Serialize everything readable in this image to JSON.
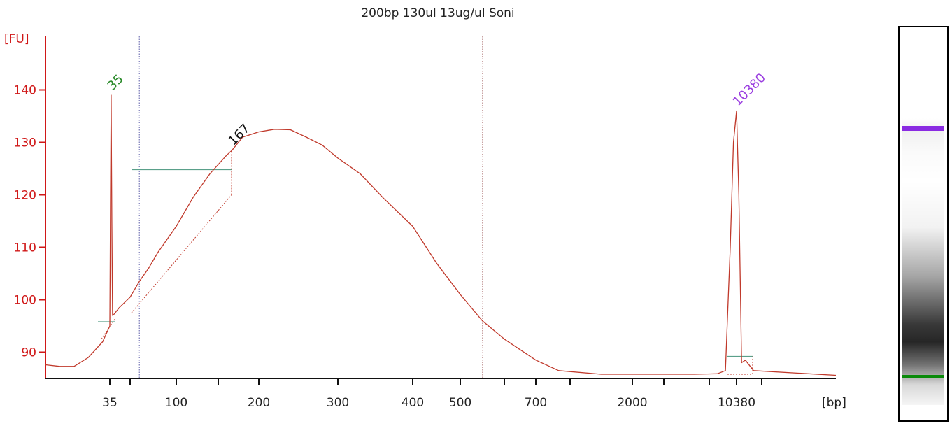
{
  "chart_data": {
    "type": "line",
    "title": "200bp 130ul 13ug/ul Soni",
    "ylabel": "[FU]",
    "xlabel": "[bp]",
    "ylim": [
      80,
      145
    ],
    "y_ticks": [
      90,
      100,
      110,
      120,
      130,
      140
    ],
    "x_ticks": [
      {
        "label": "35",
        "value": 35
      },
      {
        "label": "",
        "value": 50
      },
      {
        "label": "100",
        "value": 100
      },
      {
        "label": "",
        "value": 150
      },
      {
        "label": "200",
        "value": 200
      },
      {
        "label": "300",
        "value": 300
      },
      {
        "label": "400",
        "value": 400
      },
      {
        "label": "500",
        "value": 500
      },
      {
        "label": "",
        "value": 600
      },
      {
        "label": "700",
        "value": 700
      },
      {
        "label": "",
        "value": 1000
      },
      {
        "label": "2000",
        "value": 2000
      },
      {
        "label": "",
        "value": 4000
      },
      {
        "label": "",
        "value": 7000
      },
      {
        "label": "10380",
        "value": 10380
      },
      {
        "label": "",
        "value": 15000
      }
    ],
    "series": [
      {
        "color": "#c0392b",
        "points": [
          [
            26,
            87.6
          ],
          [
            28,
            87.3
          ],
          [
            30,
            87.3
          ],
          [
            32,
            89.0
          ],
          [
            34,
            92.0
          ],
          [
            35,
            95.0
          ],
          [
            35.5,
            120.0
          ],
          [
            36,
            139.0
          ],
          [
            36.5,
            115.0
          ],
          [
            37,
            97.0
          ],
          [
            38,
            97.2
          ],
          [
            42,
            98.5
          ],
          [
            50,
            100.5
          ],
          [
            60,
            103.5
          ],
          [
            70,
            106.0
          ],
          [
            80,
            109.0
          ],
          [
            100,
            114.0
          ],
          [
            120,
            119.5
          ],
          [
            140,
            124.0
          ],
          [
            160,
            127.5
          ],
          [
            167,
            128.5
          ],
          [
            180,
            131.0
          ],
          [
            200,
            132.0
          ],
          [
            220,
            132.5
          ],
          [
            240,
            132.4
          ],
          [
            260,
            131.0
          ],
          [
            280,
            129.5
          ],
          [
            300,
            127.0
          ],
          [
            330,
            124.0
          ],
          [
            360,
            119.5
          ],
          [
            400,
            114.0
          ],
          [
            450,
            107.0
          ],
          [
            500,
            101.0
          ],
          [
            550,
            96.0
          ],
          [
            600,
            92.5
          ],
          [
            700,
            88.5
          ],
          [
            900,
            86.5
          ],
          [
            1500,
            85.8
          ],
          [
            3000,
            85.8
          ],
          [
            6000,
            85.8
          ],
          [
            8000,
            85.9
          ],
          [
            9000,
            86.5
          ],
          [
            9600,
            110.0
          ],
          [
            10000,
            130.0
          ],
          [
            10380,
            136.0
          ],
          [
            10800,
            120.0
          ],
          [
            11300,
            88.0
          ],
          [
            12000,
            88.5
          ],
          [
            13500,
            86.5
          ],
          [
            18000,
            85.6
          ]
        ]
      }
    ],
    "peaks": [
      {
        "label": "35",
        "x": 36,
        "y": 139,
        "color": "#2a8a2a"
      },
      {
        "label": "167",
        "x": 167,
        "y": 128.5,
        "color": "#111111"
      },
      {
        "label": "10380",
        "x": 10380,
        "y": 136,
        "color": "#9b3fe0"
      }
    ],
    "region_markers": [
      60,
      550
    ],
    "grid": false,
    "legend": "none"
  },
  "gel": {
    "upper_marker_color": "#8a2be2",
    "lower_marker_color": "#0a8a0a",
    "smear_color": "#000000"
  }
}
